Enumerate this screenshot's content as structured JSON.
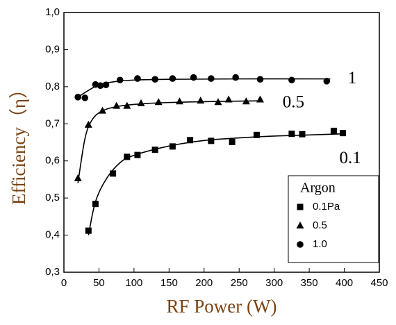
{
  "chart_data": {
    "type": "scatter",
    "x_label": "RF Power (W)",
    "y_label": "Efficiency（η）",
    "xlim": [
      0,
      450
    ],
    "xticks": [
      0,
      50,
      100,
      150,
      200,
      250,
      300,
      350,
      400,
      450
    ],
    "ylim": [
      0.3,
      1.0
    ],
    "yticks": [
      {
        "value": 0.3,
        "label": "0,3"
      },
      {
        "value": 0.4,
        "label": "0,4"
      },
      {
        "value": 0.5,
        "label": "0,5"
      },
      {
        "value": 0.6,
        "label": "0,6"
      },
      {
        "value": 0.7,
        "label": "0,7"
      },
      {
        "value": 0.8,
        "label": "0,8"
      },
      {
        "value": 0.9,
        "label": "0,9"
      },
      {
        "value": 1.0,
        "label": "1,0"
      }
    ],
    "legend_title": "Argon",
    "series": [
      {
        "name": "0.1Pa",
        "color": "#000000",
        "marker": "square",
        "x": [
          35,
          45,
          70,
          90,
          105,
          130,
          155,
          180,
          210,
          240,
          275,
          325,
          340,
          385,
          398
        ],
        "values": [
          0.412,
          0.484,
          0.566,
          0.611,
          0.616,
          0.63,
          0.639,
          0.656,
          0.654,
          0.651,
          0.67,
          0.673,
          0.672,
          0.681,
          0.675
        ]
      },
      {
        "name": "0.5",
        "color": "#000000",
        "marker": "triangle",
        "x": [
          20,
          35,
          55,
          75,
          90,
          110,
          135,
          165,
          195,
          220,
          235,
          260,
          280
        ],
        "values": [
          0.553,
          0.697,
          0.735,
          0.748,
          0.748,
          0.755,
          0.758,
          0.76,
          0.762,
          0.758,
          0.765,
          0.76,
          0.765
        ]
      },
      {
        "name": "1.0",
        "color": "#000000",
        "marker": "circle",
        "x": [
          20,
          30,
          45,
          52,
          60,
          80,
          105,
          130,
          155,
          185,
          210,
          245,
          280,
          325,
          375
        ],
        "values": [
          0.772,
          0.77,
          0.806,
          0.803,
          0.805,
          0.818,
          0.822,
          0.82,
          0.822,
          0.825,
          0.822,
          0.825,
          0.82,
          0.818,
          0.815
        ]
      }
    ],
    "curves": [
      {
        "x": [
          35,
          45,
          60,
          80,
          100,
          150,
          200,
          250,
          300,
          350,
          400
        ],
        "values": [
          0.4,
          0.49,
          0.55,
          0.595,
          0.615,
          0.64,
          0.655,
          0.662,
          0.667,
          0.67,
          0.673
        ]
      },
      {
        "x": [
          20,
          30,
          40,
          55,
          80,
          120,
          180,
          280
        ],
        "values": [
          0.54,
          0.66,
          0.71,
          0.735,
          0.748,
          0.755,
          0.759,
          0.762
        ]
      },
      {
        "x": [
          20,
          35,
          50,
          70,
          100,
          150,
          250,
          380
        ],
        "values": [
          0.772,
          0.79,
          0.805,
          0.813,
          0.818,
          0.82,
          0.821,
          0.821
        ]
      }
    ],
    "annotations": [
      {
        "text": "1",
        "x": 405,
        "y": 0.82
      },
      {
        "text": "0.5",
        "x": 312,
        "y": 0.755
      },
      {
        "text": "0.1",
        "x": 393,
        "y": 0.605
      }
    ]
  }
}
